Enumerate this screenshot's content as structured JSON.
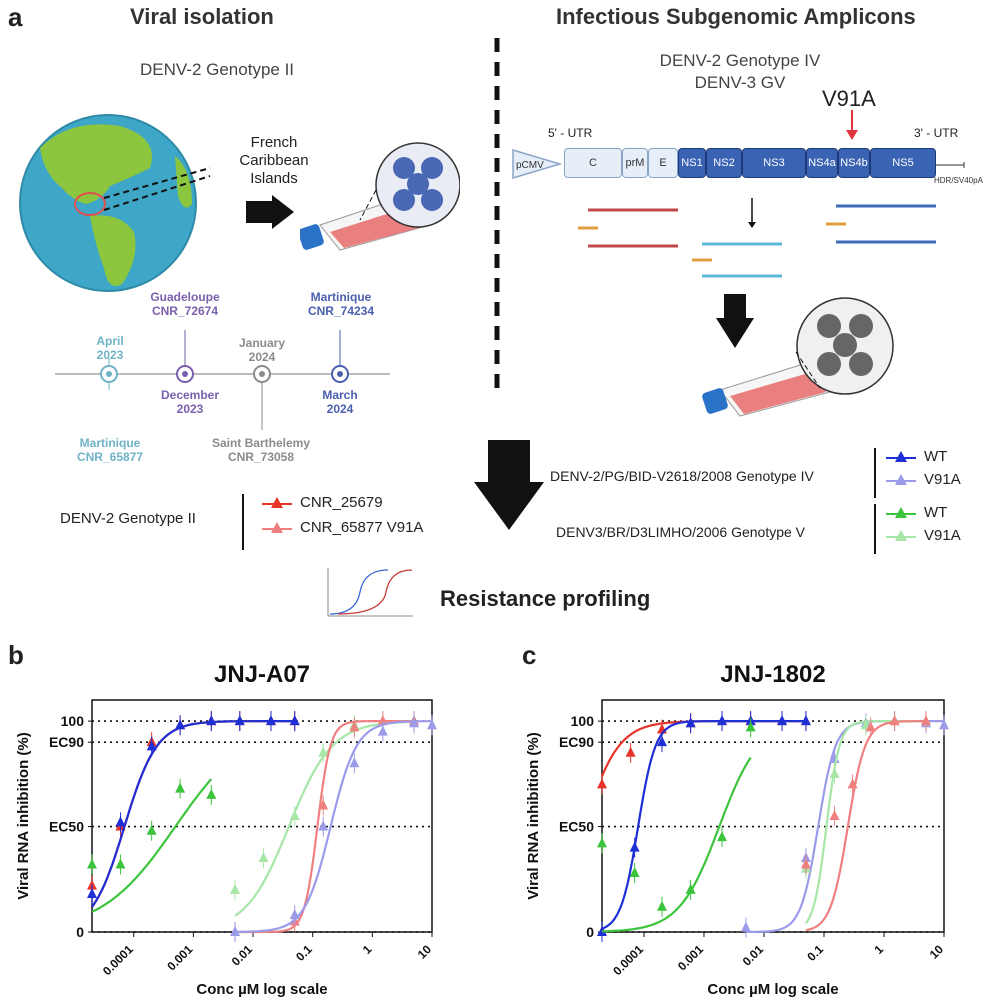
{
  "panel_a": {
    "letter": "a",
    "left_title": "Viral isolation",
    "right_title": "Infectious Subgenomic Amplicons",
    "left_genotype": "DENV-2 Genotype II",
    "location": "French Caribbean Islands",
    "right_genotype_1": "DENV-2 Genotype IV",
    "right_genotype_2": "DENV-3 GV",
    "mutation": "V91A",
    "utr5": "5' - UTR",
    "utr3": "3' - UTR",
    "hdr": "HDR/SV40pA",
    "genes": [
      "pCMV",
      "C",
      "prM",
      "E",
      "NS1",
      "NS2",
      "NS3",
      "NS4a",
      "NS4b",
      "NS5"
    ],
    "timeline": {
      "above": [
        {
          "l1": "April",
          "l2": "2023",
          "color": "#6fb3c7"
        },
        {
          "l1": "Guadeloupe",
          "l2": "CNR_72674",
          "color": "#7a5fae"
        },
        {
          "l1": "January",
          "l2": "2024",
          "color": "#8b8b8b"
        },
        {
          "l1": "Martinique",
          "l2": "CNR_74234",
          "color": "#4a5fae"
        }
      ],
      "below": [
        {
          "l1": "Martinique",
          "l2": "CNR_65877",
          "color": "#6fb3c7"
        },
        {
          "l1": "December",
          "l2": "2023",
          "color": "#7a5fae"
        },
        {
          "l1": "Saint Barthelemy",
          "l2": "CNR_73058",
          "color": "#8b8b8b"
        },
        {
          "l1": "March",
          "l2": "2024",
          "color": "#4a5fae"
        }
      ]
    },
    "legend_left_label": "DENV-2  Genotype II",
    "legend_left": [
      {
        "name": "CNR_25679",
        "color": "#e8332a"
      },
      {
        "name": "CNR_65877 V91A",
        "color": "#f08080"
      }
    ],
    "legend_right_1_label": "DENV-2/PG/BID-V2618/2008  Genotype IV",
    "legend_right_1": [
      {
        "name": "WT",
        "color": "#1f2fd6"
      },
      {
        "name": "V91A",
        "color": "#9b9bea"
      }
    ],
    "legend_right_2_label": "DENV3/BR/D3LIMHO/2006 Genotype V",
    "legend_right_2": [
      {
        "name": "WT",
        "color": "#3cc43c"
      },
      {
        "name": "V91A",
        "color": "#a6e6a6"
      }
    ],
    "resistance": "Resistance profiling"
  },
  "panel_b_letter": "b",
  "panel_c_letter": "c",
  "chart_data": [
    {
      "type": "line",
      "title": "JNJ-A07",
      "xlabel": "Conc µM log scale",
      "ylabel": "Viral RNA inhibition (%)",
      "x_scale": "log",
      "xlim": [
        2e-05,
        10
      ],
      "ylim": [
        0,
        110
      ],
      "x_ticks": [
        "0.0001",
        "0.001",
        "0.01",
        "0.1",
        "1",
        "10"
      ],
      "y_ticks": [
        "0",
        "EC50",
        "EC90",
        "100"
      ],
      "reference_lines": [
        0,
        50,
        90,
        100
      ],
      "grid": false,
      "series": [
        {
          "name": "CNR_25679",
          "color": "#e8332a",
          "ec50": 7e-05,
          "hill": 1.6,
          "x": [
            2e-05,
            6e-05,
            0.0002,
            0.0006,
            0.002,
            0.006,
            0.02,
            0.05
          ],
          "y": [
            22,
            50,
            90,
            98,
            100,
            100,
            100,
            100
          ]
        },
        {
          "name": "DENV-2 WT",
          "color": "#1f2fd6",
          "ec50": 7e-05,
          "hill": 1.6,
          "x": [
            2e-05,
            6e-05,
            0.0002,
            0.0006,
            0.002,
            0.006,
            0.02,
            0.05
          ],
          "y": [
            18,
            52,
            88,
            98,
            100,
            100,
            100,
            100
          ]
        },
        {
          "name": "DENV-3 WT",
          "color": "#3cc43c",
          "ec50": 0.0005,
          "hill": 0.7,
          "x": [
            2e-05,
            6e-05,
            0.0002,
            0.0006,
            0.002
          ],
          "y": [
            32,
            32,
            48,
            68,
            65
          ]
        },
        {
          "name": "DENV-3 V91A",
          "color": "#a6e6a6",
          "ec50": 0.04,
          "hill": 1.2,
          "x": [
            0.005,
            0.015,
            0.05,
            0.15,
            0.5,
            1.5,
            5
          ],
          "y": [
            20,
            35,
            55,
            85,
            98,
            100,
            100
          ]
        },
        {
          "name": "CNR_65877 V91A",
          "color": "#f08080",
          "ec50": 0.12,
          "hill": 4,
          "x": [
            0.005,
            0.05,
            0.15,
            0.5,
            1.5,
            5
          ],
          "y": [
            0,
            5,
            60,
            97,
            100,
            100
          ]
        },
        {
          "name": "DENV-2 V91A",
          "color": "#9b9bea",
          "ec50": 0.2,
          "hill": 2,
          "x": [
            0.005,
            0.05,
            0.15,
            0.5,
            1.5,
            5,
            10
          ],
          "y": [
            0,
            8,
            50,
            80,
            95,
            99,
            98
          ]
        }
      ]
    },
    {
      "type": "line",
      "title": "JNJ-1802",
      "xlabel": "Conc µM log scale",
      "ylabel": "Viral RNA inhibition (%)",
      "x_scale": "log",
      "xlim": [
        2e-05,
        10
      ],
      "ylim": [
        0,
        110
      ],
      "x_ticks": [
        "0.0001",
        "0.001",
        "0.01",
        "0.1",
        "1",
        "10"
      ],
      "y_ticks": [
        "0",
        "EC50",
        "EC90",
        "100"
      ],
      "reference_lines": [
        0,
        50,
        90,
        100
      ],
      "grid": false,
      "series": [
        {
          "name": "CNR_25679",
          "color": "#e8332a",
          "ec50": 1e-05,
          "hill": 1.5,
          "x": [
            2e-05,
            6e-05,
            0.0002,
            0.0006,
            0.002,
            0.006,
            0.02,
            0.05
          ],
          "y": [
            70,
            85,
            96,
            99,
            100,
            100,
            100,
            100
          ]
        },
        {
          "name": "DENV-2 WT",
          "color": "#1f2fd6",
          "ec50": 8e-05,
          "hill": 3,
          "x": [
            2e-05,
            7e-05,
            0.0002,
            0.0006,
            0.002,
            0.006,
            0.02,
            0.05
          ],
          "y": [
            0,
            40,
            90,
            99,
            100,
            100,
            100,
            100
          ]
        },
        {
          "name": "DENV-3 WT",
          "color": "#3cc43c",
          "ec50": 0.0018,
          "hill": 1.3,
          "x": [
            2e-05,
            7e-05,
            0.0002,
            0.0006,
            0.002,
            0.006
          ],
          "y": [
            42,
            28,
            12,
            20,
            45,
            97
          ]
        },
        {
          "name": "DENV-2 V91A",
          "color": "#9b9bea",
          "ec50": 0.08,
          "hill": 3,
          "x": [
            0.005,
            0.05,
            0.15,
            0.5,
            1.5,
            5,
            10
          ],
          "y": [
            2,
            35,
            82,
            99,
            100,
            99,
            98
          ]
        },
        {
          "name": "DENV-3 V91A",
          "color": "#a6e6a6",
          "ec50": 0.11,
          "hill": 4,
          "x": [
            0.05,
            0.15,
            0.5,
            1.5,
            5
          ],
          "y": [
            30,
            75,
            98,
            100,
            100
          ]
        },
        {
          "name": "CNR_65877 V91A",
          "color": "#f08080",
          "ec50": 0.25,
          "hill": 3,
          "x": [
            0.05,
            0.15,
            0.3,
            0.6,
            1.5,
            5
          ],
          "y": [
            32,
            55,
            70,
            97,
            100,
            100
          ]
        }
      ]
    }
  ]
}
